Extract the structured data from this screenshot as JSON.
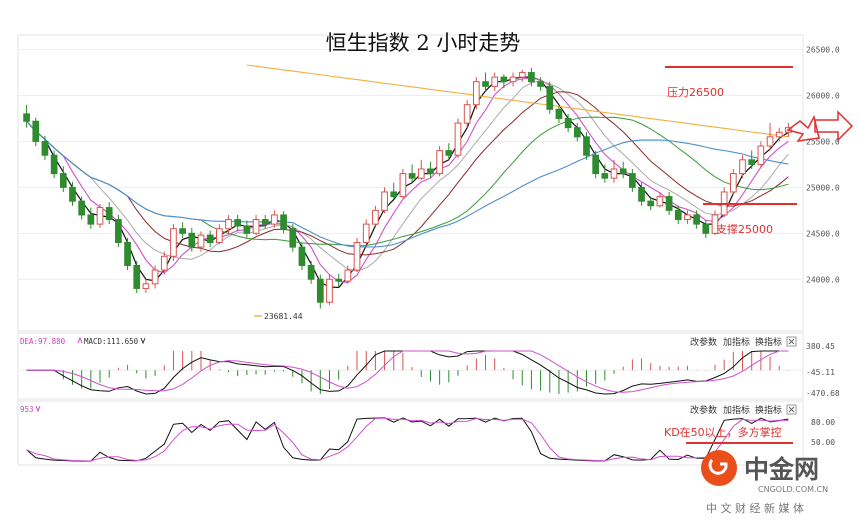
{
  "chart_data": {
    "type": "candlestick",
    "title": "恒生指数 2 小时走势",
    "main_panel": {
      "ylim": [
        23600,
        26800
      ],
      "y_ticks": [
        24000,
        24500,
        25000,
        25500,
        26000,
        26500
      ],
      "y_tick_labels": [
        "24000.0",
        "24500.0",
        "25000.0",
        "25500.0",
        "26000.0",
        "26500.0"
      ],
      "low_annotation": "23681.44",
      "pressure_label": "压力26500",
      "pressure_level": 26500,
      "support_label": "支撑25000",
      "support_level": 24980,
      "candles": [
        [
          25800,
          25720,
          25900,
          25650
        ],
        [
          25720,
          25500,
          25760,
          25450
        ],
        [
          25500,
          25350,
          25560,
          25300
        ],
        [
          25350,
          25150,
          25400,
          25100
        ],
        [
          25150,
          25000,
          25230,
          24950
        ],
        [
          25000,
          24850,
          25060,
          24800
        ],
        [
          24850,
          24700,
          24900,
          24650
        ],
        [
          24700,
          24600,
          24780,
          24550
        ],
        [
          24600,
          24780,
          24820,
          24560
        ],
        [
          24780,
          24650,
          24840,
          24600
        ],
        [
          24650,
          24400,
          24700,
          24350
        ],
        [
          24400,
          24150,
          24450,
          24100
        ],
        [
          24150,
          23900,
          24200,
          23850
        ],
        [
          23900,
          23950,
          24000,
          23850
        ],
        [
          23950,
          24100,
          24150,
          23900
        ],
        [
          24100,
          24250,
          24300,
          24050
        ],
        [
          24250,
          24550,
          24600,
          24200
        ],
        [
          24550,
          24500,
          24620,
          24450
        ],
        [
          24500,
          24350,
          24560,
          24300
        ],
        [
          24350,
          24480,
          24520,
          24300
        ],
        [
          24480,
          24400,
          24530,
          24350
        ],
        [
          24400,
          24550,
          24600,
          24380
        ],
        [
          24550,
          24650,
          24700,
          24500
        ],
        [
          24650,
          24580,
          24700,
          24520
        ],
        [
          24580,
          24500,
          24640,
          24450
        ],
        [
          24500,
          24650,
          24700,
          24480
        ],
        [
          24650,
          24600,
          24700,
          24550
        ],
        [
          24600,
          24700,
          24750,
          24560
        ],
        [
          24700,
          24550,
          24740,
          24500
        ],
        [
          24550,
          24350,
          24600,
          24300
        ],
        [
          24350,
          24150,
          24400,
          24100
        ],
        [
          24150,
          24000,
          24200,
          23950
        ],
        [
          24000,
          23750,
          24050,
          23681
        ],
        [
          23750,
          24000,
          24050,
          23720
        ],
        [
          24000,
          23980,
          24060,
          23920
        ],
        [
          23980,
          24100,
          24150,
          23950
        ],
        [
          24100,
          24400,
          24450,
          24080
        ],
        [
          24400,
          24600,
          24650,
          24380
        ],
        [
          24600,
          24750,
          24800,
          24580
        ],
        [
          24750,
          24950,
          25000,
          24720
        ],
        [
          24950,
          24900,
          25050,
          24880
        ],
        [
          24900,
          25150,
          25200,
          24880
        ],
        [
          25150,
          25100,
          25250,
          25050
        ],
        [
          25100,
          25200,
          25300,
          25080
        ],
        [
          25200,
          25150,
          25280,
          25100
        ],
        [
          25150,
          25400,
          25450,
          25120
        ],
        [
          25400,
          25350,
          25480,
          25300
        ],
        [
          25350,
          25700,
          25750,
          25320
        ],
        [
          25700,
          25900,
          25950,
          25650
        ],
        [
          25900,
          26150,
          26200,
          25850
        ],
        [
          26150,
          26100,
          26250,
          26050
        ],
        [
          26100,
          26200,
          26250,
          26050
        ],
        [
          26200,
          26150,
          26230,
          26080
        ],
        [
          26150,
          26200,
          26250,
          26100
        ],
        [
          26200,
          26250,
          26280,
          26150
        ],
        [
          26250,
          26150,
          26300,
          26100
        ],
        [
          26150,
          26100,
          26200,
          26050
        ],
        [
          26100,
          25850,
          26150,
          25800
        ],
        [
          25850,
          25750,
          25900,
          25700
        ],
        [
          25750,
          25650,
          25800,
          25600
        ],
        [
          25650,
          25550,
          25700,
          25500
        ],
        [
          25550,
          25350,
          25600,
          25300
        ],
        [
          25350,
          25150,
          25400,
          25100
        ],
        [
          25150,
          25100,
          25250,
          25050
        ],
        [
          25100,
          25200,
          25300,
          25050
        ],
        [
          25200,
          25150,
          25280,
          25100
        ],
        [
          25150,
          25000,
          25200,
          24950
        ],
        [
          25000,
          24850,
          25050,
          24800
        ],
        [
          24850,
          24800,
          24900,
          24750
        ],
        [
          24800,
          24900,
          24950,
          24780
        ],
        [
          24900,
          24750,
          24950,
          24700
        ],
        [
          24750,
          24650,
          24800,
          24600
        ],
        [
          24650,
          24700,
          24750,
          24600
        ],
        [
          24700,
          24600,
          24750,
          24550
        ],
        [
          24600,
          24500,
          24650,
          24450
        ],
        [
          24500,
          24700,
          24750,
          24480
        ],
        [
          24700,
          24950,
          25000,
          24680
        ],
        [
          24950,
          25150,
          25200,
          24920
        ],
        [
          25150,
          25300,
          25350,
          25100
        ],
        [
          25300,
          25250,
          25400,
          25200
        ],
        [
          25250,
          25450,
          25500,
          25220
        ],
        [
          25450,
          25550,
          25700,
          25400
        ],
        [
          25550,
          25600,
          25650,
          25500
        ],
        [
          25600,
          25650,
          25700,
          25550
        ]
      ]
    },
    "macd_panel": {
      "label_dea": "DEA:97.880",
      "label_macd": "MACD:111.650",
      "y_tick_labels": [
        "380.45",
        "-45.11",
        "-470.68"
      ],
      "ylim": [
        -470.68,
        380.45
      ]
    },
    "kd_panel": {
      "label": "953",
      "y_tick_labels": [
        "80.00",
        "50.00"
      ],
      "annotation": "KD在50以上，多方掌控",
      "ylim": [
        0,
        100
      ]
    },
    "panel_buttons": [
      "改参数",
      "加指标",
      "换指标"
    ],
    "colors": {
      "up": "#d9534f",
      "down": "#2e8b2e",
      "annotation_red": "#e03030",
      "ma_blue": "#4f8fd0",
      "ma_orange": "#f0b040",
      "ma_green": "#3a9a3a",
      "ma_maroon": "#8b2a2a",
      "ma_magenta": "#d050d0",
      "ma_gray": "#aaaaaa"
    }
  },
  "watermark": {
    "brand": "中金网",
    "url": "CNGOLD.COM.CN",
    "tagline": "中 文 财 经 新 媒 体"
  }
}
